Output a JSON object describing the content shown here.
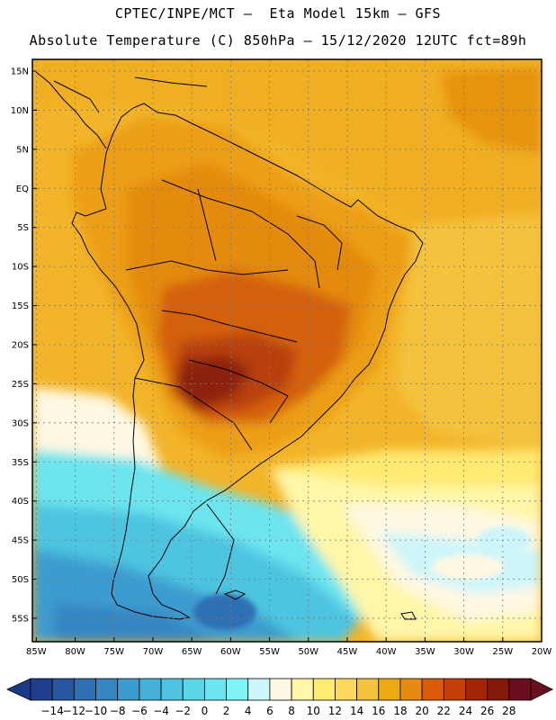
{
  "header": {
    "line1": "CPTEC/INPE/MCT –  Eta Model 15km – GFS",
    "line2": "Absolute Temperature (C) 850hPa – 15/12/2020 12UTC fct=89h"
  },
  "map": {
    "lat_labels": [
      "15N",
      "10N",
      "5N",
      "EQ",
      "5S",
      "10S",
      "15S",
      "20S",
      "25S",
      "30S",
      "35S",
      "40S",
      "45S",
      "50S",
      "55S"
    ],
    "lat_values": [
      15,
      10,
      5,
      0,
      -5,
      -10,
      -15,
      -20,
      -25,
      -30,
      -35,
      -40,
      -45,
      -50,
      -55
    ],
    "lon_labels": [
      "85W",
      "80W",
      "75W",
      "70W",
      "65W",
      "60W",
      "55W",
      "50W",
      "45W",
      "40W",
      "35W",
      "30W",
      "25W",
      "20W"
    ],
    "lon_values": [
      -85,
      -80,
      -75,
      -70,
      -65,
      -60,
      -55,
      -50,
      -45,
      -40,
      -35,
      -30,
      -25,
      -20
    ],
    "lon_range": [
      -85.5,
      -20
    ],
    "lat_range": [
      -58,
      16.5
    ]
  },
  "colorbar": {
    "labels": [
      "-14",
      "-12",
      "-10",
      "-8",
      "-6",
      "-4",
      "-2",
      "0",
      "2",
      "4",
      "6",
      "8",
      "10",
      "12",
      "14",
      "16",
      "18",
      "20",
      "22",
      "24",
      "26",
      "28"
    ],
    "colors": [
      "#1f3f8c",
      "#2757a1",
      "#2f6fb4",
      "#3686c2",
      "#3d9ccf",
      "#45b0d8",
      "#4ec4e0",
      "#5ad6e8",
      "#6de4ee",
      "#7ff4f4",
      "#cdf6fa",
      "#fff8e2",
      "#fff6a8",
      "#ffea72",
      "#fcd85c",
      "#f4c23c",
      "#ecaa12",
      "#e68a10",
      "#da5c0a",
      "#c73f08",
      "#a22406",
      "#821a0c",
      "#6a0f20"
    ],
    "under_color": "#1a3a88",
    "over_color": "#6a0f20"
  }
}
